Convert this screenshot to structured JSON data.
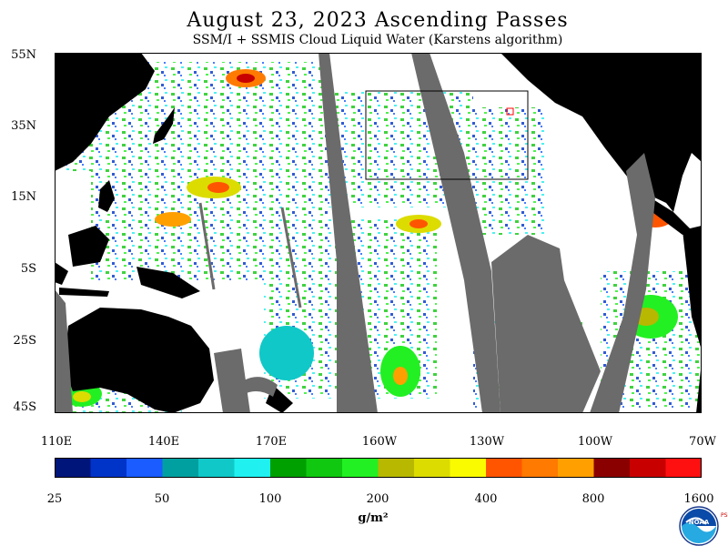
{
  "header": {
    "title": "August 23, 2023  Ascending Passes",
    "subtitle": "SSM/I + SSMIS Cloud Liquid Water (Karstens algorithm)"
  },
  "map": {
    "lat_labels": [
      "55N",
      "35N",
      "15N",
      "5S",
      "25S",
      "45S"
    ],
    "lon_labels": [
      "110E",
      "140E",
      "170E",
      "160W",
      "130W",
      "100W",
      "70W"
    ],
    "land_color": "#000000",
    "no_data_color": "#6b6b6b",
    "clear_color": "#ffffff"
  },
  "colorbar": {
    "colors": [
      "#00157a",
      "#0033c8",
      "#1a5cff",
      "#00a0a0",
      "#10c8c8",
      "#20f0f0",
      "#00a000",
      "#10c810",
      "#22f022",
      "#b8b800",
      "#dcdc00",
      "#fbfb00",
      "#ff5500",
      "#ff7a00",
      "#ffa000",
      "#8a0000",
      "#c80000",
      "#ff1010"
    ],
    "tick_labels": [
      "25",
      "50",
      "100",
      "200",
      "400",
      "800",
      "1600"
    ],
    "units": "g/m²"
  },
  "logo": {
    "text": "NOAA",
    "side_text": "PSL"
  }
}
